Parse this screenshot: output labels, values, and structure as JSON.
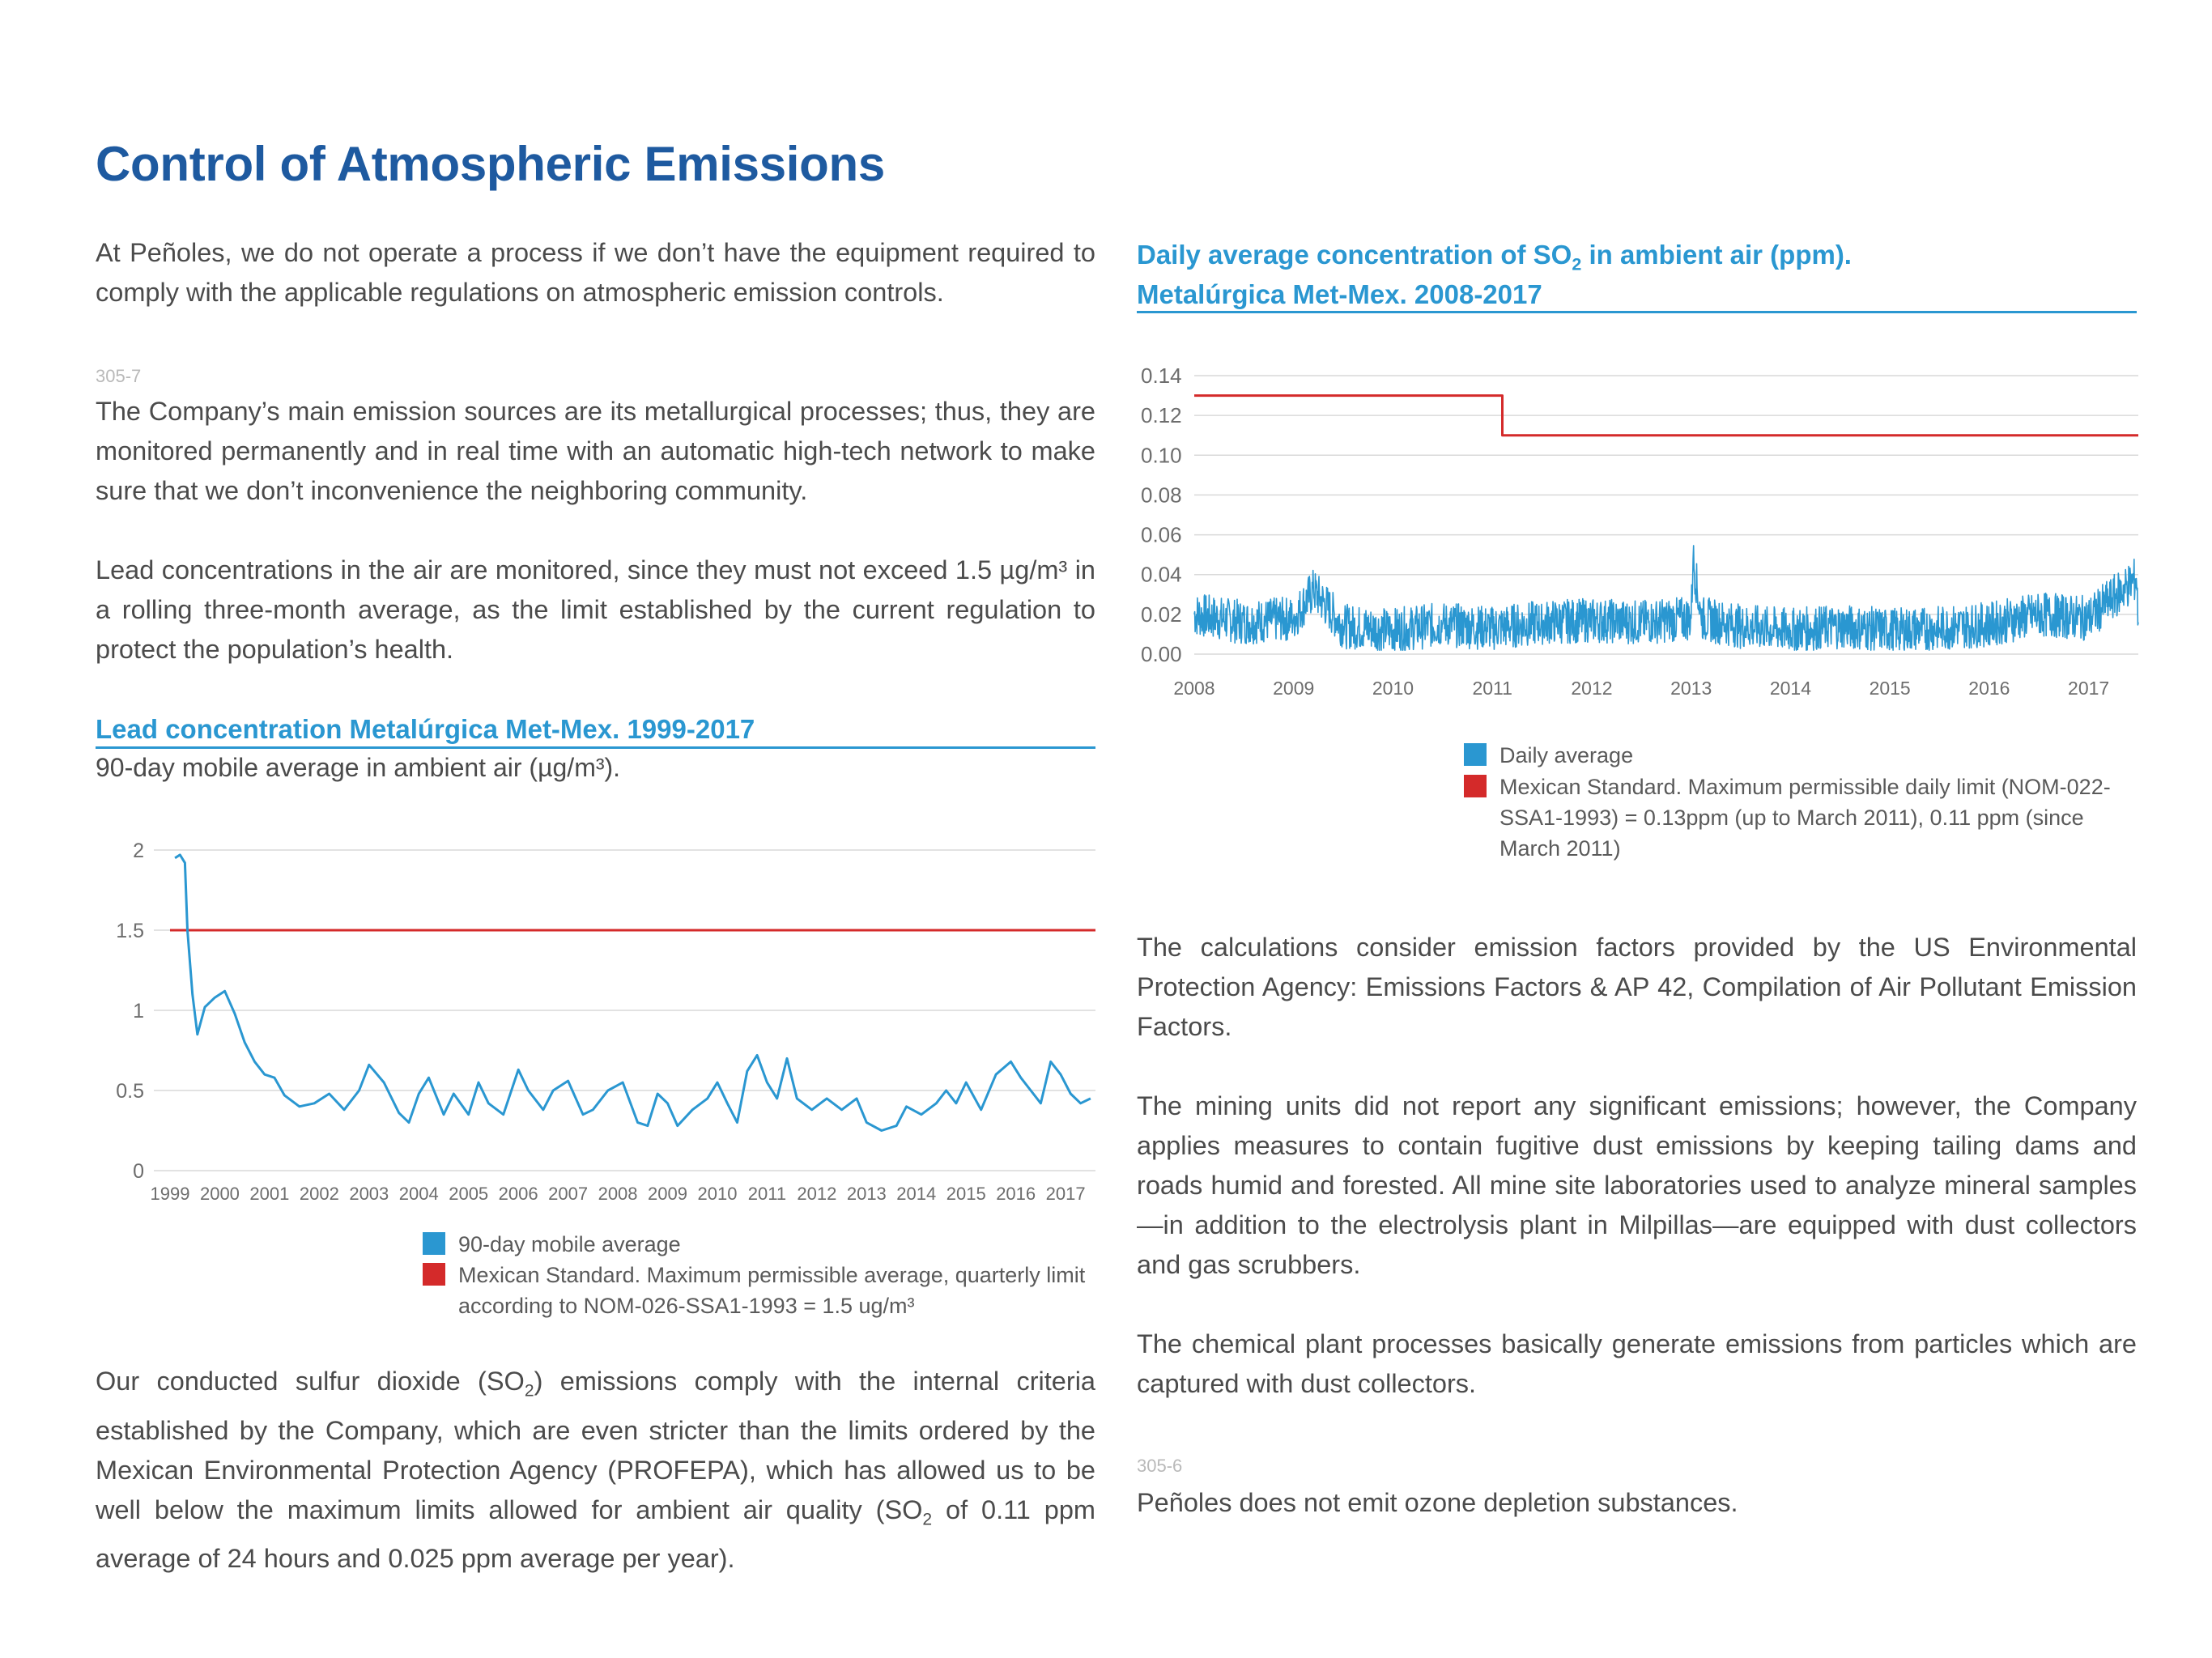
{
  "title": "Control of Atmospheric Emissions",
  "left_column": {
    "intro_paragraph": "At Peñoles, we do not operate a process if we don’t have the equipment required to comply with the applicable regulations on atmospheric emission controls.",
    "ref_1": "305-7",
    "sources_paragraph": "The Company’s main emission sources are its metallurgical processes; thus, they are monitored permanently and in real time with an automatic high-tech network to make sure that we don’t inconvenience the neighboring community.",
    "lead_paragraph": "Lead concentrations in the air are monitored, since they must not exceed 1.5 µg/m³ in a rolling three-month average, as the limit established by the current regulation to protect the population’s health.",
    "so2_paragraph_parts": {
      "a": "Our conducted sulfur dioxide (SO",
      "sub1": "2",
      "b": ") emissions comply with the internal criteria established by the Company, which are even stricter than the limits ordered by the Mexican Environmental Protection Agency (PROFEPA), which has allowed us to be well below the maximum limits allowed for ambient air quality (SO",
      "sub2": "2",
      "c": " of 0.11 ppm average of 24 hours and 0.025 ppm average per year)."
    }
  },
  "lead_chart_block": {
    "title": "Lead concentration Metalúrgica Met-Mex. 1999-2017",
    "subtitle": "90-day mobile average in ambient air (µg/m³).",
    "legend": [
      {
        "label": "90-day mobile average",
        "color": "#2a97d1"
      },
      {
        "label": "Mexican Standard. Maximum permissible average, quarterly limit according to NOM-026-SSA1-1993 = 1.5 ug/m³",
        "color": "#d42a2a"
      }
    ]
  },
  "so2_chart_block": {
    "title_parts": {
      "a": "Daily average concentration of SO",
      "sub": "2",
      "b": " in ambient air (ppm)."
    },
    "title_line2": "Metalúrgica Met-Mex. 2008-2017",
    "legend": [
      {
        "label": "Daily average",
        "color": "#2a97d1"
      },
      {
        "label": "Mexican Standard. Maximum  permissible daily limit (NOM-022-SSA1-1993) = 0.13ppm (up to March 2011), 0.11 ppm (since March 2011)",
        "color": "#d42a2a"
      }
    ]
  },
  "right_column": {
    "epa_paragraph": "The calculations consider emission factors provided by the US Environmental Protection Agency: Emissions Factors & AP 42, Compilation of Air Pollutant Emission Factors.",
    "mining_paragraph": "The mining units did not report any significant emissions; however, the Company applies measures to contain fugitive dust emissions by keeping tailing dams and roads humid and forested. All mine site laboratories used to analyze mineral samples—in addition to the electrolysis plant in Milpillas—are equipped with dust collectors and gas scrubbers.",
    "chemical_paragraph": "The chemical plant processes basically generate emissions from particles which are captured with dust collectors.",
    "ref_2": "305-6",
    "ozone_paragraph": "Peñoles does not emit ozone depletion substances."
  },
  "chart_data": [
    {
      "type": "line",
      "title": "Lead concentration Metalúrgica Met-Mex. 1999-2017",
      "ylabel": "90-day mobile average in ambient air (µg/m³).",
      "xlim": [
        1999,
        2017.6
      ],
      "ylim": [
        0,
        2
      ],
      "yticks": [
        "0",
        "0.5",
        "1",
        "1.5",
        "2"
      ],
      "xticks": [
        "1999",
        "2000",
        "2001",
        "2002",
        "2003",
        "2004",
        "2005",
        "2006",
        "2007",
        "2008",
        "2009",
        "2010",
        "2011",
        "2012",
        "2013",
        "2014",
        "2015",
        "2016",
        "2017"
      ],
      "grid": true,
      "legend_position": "bottom",
      "series": [
        {
          "name": "90-day mobile average",
          "color": "#2a97d1",
          "points": [
            [
              1999.1,
              1.95
            ],
            [
              1999.2,
              1.97
            ],
            [
              1999.3,
              1.92
            ],
            [
              1999.35,
              1.5
            ],
            [
              1999.45,
              1.1
            ],
            [
              1999.55,
              0.85
            ],
            [
              1999.7,
              1.02
            ],
            [
              1999.9,
              1.08
            ],
            [
              2000.1,
              1.12
            ],
            [
              2000.3,
              0.98
            ],
            [
              2000.5,
              0.8
            ],
            [
              2000.7,
              0.68
            ],
            [
              2000.9,
              0.6
            ],
            [
              2001.1,
              0.58
            ],
            [
              2001.3,
              0.47
            ],
            [
              2001.6,
              0.4
            ],
            [
              2001.9,
              0.42
            ],
            [
              2002.2,
              0.48
            ],
            [
              2002.5,
              0.38
            ],
            [
              2002.8,
              0.5
            ],
            [
              2003.0,
              0.66
            ],
            [
              2003.3,
              0.55
            ],
            [
              2003.6,
              0.36
            ],
            [
              2003.8,
              0.3
            ],
            [
              2004.0,
              0.48
            ],
            [
              2004.2,
              0.58
            ],
            [
              2004.5,
              0.35
            ],
            [
              2004.7,
              0.48
            ],
            [
              2005.0,
              0.35
            ],
            [
              2005.2,
              0.55
            ],
            [
              2005.4,
              0.42
            ],
            [
              2005.7,
              0.35
            ],
            [
              2006.0,
              0.63
            ],
            [
              2006.2,
              0.5
            ],
            [
              2006.5,
              0.38
            ],
            [
              2006.7,
              0.5
            ],
            [
              2007.0,
              0.56
            ],
            [
              2007.3,
              0.35
            ],
            [
              2007.5,
              0.38
            ],
            [
              2007.8,
              0.5
            ],
            [
              2008.1,
              0.55
            ],
            [
              2008.4,
              0.3
            ],
            [
              2008.6,
              0.28
            ],
            [
              2008.8,
              0.48
            ],
            [
              2009.0,
              0.42
            ],
            [
              2009.2,
              0.28
            ],
            [
              2009.5,
              0.38
            ],
            [
              2009.8,
              0.45
            ],
            [
              2010.0,
              0.55
            ],
            [
              2010.2,
              0.42
            ],
            [
              2010.4,
              0.3
            ],
            [
              2010.6,
              0.62
            ],
            [
              2010.8,
              0.72
            ],
            [
              2011.0,
              0.55
            ],
            [
              2011.2,
              0.45
            ],
            [
              2011.4,
              0.7
            ],
            [
              2011.6,
              0.45
            ],
            [
              2011.9,
              0.38
            ],
            [
              2012.2,
              0.45
            ],
            [
              2012.5,
              0.38
            ],
            [
              2012.8,
              0.45
            ],
            [
              2013.0,
              0.3
            ],
            [
              2013.3,
              0.25
            ],
            [
              2013.6,
              0.28
            ],
            [
              2013.8,
              0.4
            ],
            [
              2014.1,
              0.35
            ],
            [
              2014.4,
              0.42
            ],
            [
              2014.6,
              0.5
            ],
            [
              2014.8,
              0.42
            ],
            [
              2015.0,
              0.55
            ],
            [
              2015.3,
              0.38
            ],
            [
              2015.6,
              0.6
            ],
            [
              2015.9,
              0.68
            ],
            [
              2016.1,
              0.58
            ],
            [
              2016.3,
              0.5
            ],
            [
              2016.5,
              0.42
            ],
            [
              2016.7,
              0.68
            ],
            [
              2016.9,
              0.6
            ],
            [
              2017.1,
              0.48
            ],
            [
              2017.3,
              0.42
            ],
            [
              2017.5,
              0.45
            ]
          ]
        },
        {
          "name": "Mexican Standard. Maximum permissible average, quarterly limit according to NOM-026-SSA1-1993 = 1.5 ug/m³",
          "color": "#d42a2a",
          "points": [
            [
              1999.0,
              1.5
            ],
            [
              2017.6,
              1.5
            ]
          ]
        }
      ]
    },
    {
      "type": "line",
      "title": "Daily average concentration of SO2 in ambient air (ppm). Metalúrgica Met-Mex. 2008-2017",
      "xlim": [
        2008,
        2017.5
      ],
      "ylim": [
        0,
        0.14
      ],
      "yticks": [
        "0.00",
        "0.02",
        "0.04",
        "0.06",
        "0.08",
        "0.10",
        "0.12",
        "0.14"
      ],
      "xticks": [
        "2008",
        "2009",
        "2010",
        "2011",
        "2012",
        "2013",
        "2014",
        "2015",
        "2016",
        "2017"
      ],
      "grid": true,
      "legend_position": "bottom",
      "series": [
        {
          "name": "Daily average",
          "color": "#2a97d1",
          "typical_range": [
            0.005,
            0.03
          ],
          "points": [
            [
              2008.0,
              0.02
            ],
            [
              2008.5,
              0.016
            ],
            [
              2009.0,
              0.018
            ],
            [
              2009.2,
              0.032
            ],
            [
              2009.5,
              0.014
            ],
            [
              2010.0,
              0.012
            ],
            [
              2010.5,
              0.015
            ],
            [
              2011.0,
              0.013
            ],
            [
              2011.5,
              0.016
            ],
            [
              2012.0,
              0.017
            ],
            [
              2012.5,
              0.016
            ],
            [
              2013.0,
              0.018
            ],
            [
              2013.02,
              0.048
            ],
            [
              2013.1,
              0.018
            ],
            [
              2013.5,
              0.014
            ],
            [
              2014.0,
              0.012
            ],
            [
              2014.5,
              0.014
            ],
            [
              2015.0,
              0.012
            ],
            [
              2015.5,
              0.013
            ],
            [
              2016.0,
              0.015
            ],
            [
              2016.5,
              0.02
            ],
            [
              2017.0,
              0.018
            ],
            [
              2017.48,
              0.038
            ],
            [
              2017.5,
              0.016
            ]
          ]
        },
        {
          "name": "Mexican Standard. Maximum permissible daily limit",
          "color": "#d42a2a",
          "points": [
            [
              2008.0,
              0.13
            ],
            [
              2011.1,
              0.13
            ],
            [
              2011.1,
              0.11
            ],
            [
              2017.5,
              0.11
            ]
          ]
        }
      ]
    }
  ]
}
